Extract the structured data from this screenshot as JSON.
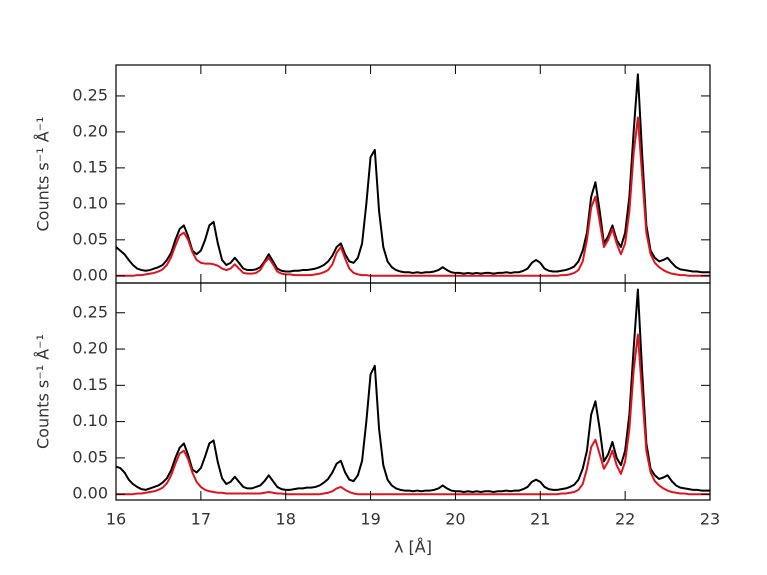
{
  "chart_data": [
    {
      "type": "line",
      "ylabel": "Counts s⁻¹ Å⁻¹",
      "xlim": [
        16,
        23
      ],
      "ylim": [
        -0.01,
        0.293
      ],
      "xticks": [
        16,
        17,
        18,
        19,
        20,
        21,
        22,
        23
      ],
      "yticks": [
        {
          "value": 0,
          "label": "0.00"
        },
        {
          "value": 0.05,
          "label": "0.05"
        },
        {
          "value": 0.1,
          "label": "0.10"
        },
        {
          "value": 0.15,
          "label": "0.15"
        },
        {
          "value": 0.2,
          "label": "0.20"
        },
        {
          "value": 0.25,
          "label": "0.25"
        }
      ],
      "x": [
        16,
        16.05,
        16.1,
        16.15,
        16.2,
        16.25,
        16.3,
        16.35,
        16.4,
        16.45,
        16.5,
        16.55,
        16.6,
        16.65,
        16.7,
        16.75,
        16.8,
        16.85,
        16.9,
        16.95,
        17,
        17.05,
        17.1,
        17.15,
        17.2,
        17.25,
        17.3,
        17.35,
        17.4,
        17.45,
        17.5,
        17.55,
        17.6,
        17.65,
        17.7,
        17.75,
        17.8,
        17.85,
        17.9,
        17.95,
        18,
        18.05,
        18.1,
        18.15,
        18.2,
        18.25,
        18.3,
        18.35,
        18.4,
        18.45,
        18.5,
        18.55,
        18.6,
        18.65,
        18.7,
        18.75,
        18.8,
        18.85,
        18.9,
        18.95,
        19,
        19.05,
        19.1,
        19.15,
        19.2,
        19.25,
        19.3,
        19.35,
        19.4,
        19.45,
        19.5,
        19.55,
        19.6,
        19.65,
        19.7,
        19.75,
        19.8,
        19.85,
        19.9,
        19.95,
        20,
        20.05,
        20.1,
        20.15,
        20.2,
        20.25,
        20.3,
        20.35,
        20.4,
        20.45,
        20.5,
        20.55,
        20.6,
        20.65,
        20.7,
        20.75,
        20.8,
        20.85,
        20.9,
        20.95,
        21,
        21.05,
        21.1,
        21.15,
        21.2,
        21.25,
        21.3,
        21.35,
        21.4,
        21.45,
        21.5,
        21.55,
        21.6,
        21.65,
        21.7,
        21.75,
        21.8,
        21.85,
        21.9,
        21.95,
        22,
        22.05,
        22.1,
        22.15,
        22.2,
        22.25,
        22.3,
        22.35,
        22.4,
        22.45,
        22.5,
        22.55,
        22.6,
        22.65,
        22.7,
        22.75,
        22.8,
        22.85,
        22.9,
        22.95,
        23
      ],
      "series": [
        {
          "color": "#000000",
          "values": [
            0.04,
            0.035,
            0.03,
            0.022,
            0.015,
            0.01,
            0.008,
            0.007,
            0.008,
            0.01,
            0.012,
            0.015,
            0.022,
            0.032,
            0.05,
            0.065,
            0.07,
            0.055,
            0.035,
            0.03,
            0.035,
            0.05,
            0.07,
            0.075,
            0.045,
            0.022,
            0.015,
            0.018,
            0.025,
            0.018,
            0.01,
            0.008,
            0.008,
            0.009,
            0.012,
            0.02,
            0.03,
            0.02,
            0.01,
            0.007,
            0.006,
            0.006,
            0.007,
            0.007,
            0.008,
            0.008,
            0.009,
            0.01,
            0.012,
            0.015,
            0.02,
            0.028,
            0.04,
            0.045,
            0.03,
            0.02,
            0.018,
            0.025,
            0.045,
            0.1,
            0.165,
            0.175,
            0.09,
            0.04,
            0.02,
            0.012,
            0.008,
            0.006,
            0.005,
            0.005,
            0.004,
            0.005,
            0.004,
            0.005,
            0.005,
            0.006,
            0.008,
            0.012,
            0.008,
            0.005,
            0.004,
            0.004,
            0.003,
            0.004,
            0.003,
            0.004,
            0.003,
            0.004,
            0.004,
            0.003,
            0.004,
            0.004,
            0.005,
            0.004,
            0.005,
            0.005,
            0.007,
            0.01,
            0.018,
            0.022,
            0.018,
            0.01,
            0.007,
            0.006,
            0.006,
            0.007,
            0.008,
            0.01,
            0.013,
            0.02,
            0.035,
            0.06,
            0.11,
            0.13,
            0.09,
            0.045,
            0.055,
            0.07,
            0.05,
            0.04,
            0.06,
            0.11,
            0.2,
            0.28,
            0.17,
            0.07,
            0.035,
            0.025,
            0.02,
            0.022,
            0.025,
            0.018,
            0.012,
            0.009,
            0.008,
            0.007,
            0.006,
            0.006,
            0.005,
            0.005,
            0.005
          ]
        },
        {
          "color": "#e0141e",
          "values": [
            0,
            0,
            0,
            0,
            0,
            0.001,
            0.001,
            0.002,
            0.003,
            0.004,
            0.006,
            0.009,
            0.015,
            0.026,
            0.042,
            0.056,
            0.06,
            0.05,
            0.033,
            0.022,
            0.018,
            0.017,
            0.017,
            0.016,
            0.014,
            0.01,
            0.008,
            0.01,
            0.016,
            0.01,
            0.004,
            0.003,
            0.003,
            0.004,
            0.008,
            0.018,
            0.025,
            0.016,
            0.006,
            0.003,
            0.002,
            0.002,
            0.001,
            0.001,
            0.001,
            0.001,
            0.001,
            0.002,
            0.003,
            0.005,
            0.008,
            0.016,
            0.032,
            0.04,
            0.024,
            0.01,
            0.004,
            0.002,
            0.001,
            0.001,
            0,
            0,
            0,
            0,
            0,
            0,
            0,
            0,
            0,
            0,
            0,
            0,
            0,
            0,
            0,
            0,
            0,
            0,
            0,
            0,
            0,
            0,
            0,
            0,
            0,
            0,
            0,
            0,
            0,
            0,
            0,
            0,
            0,
            0,
            0,
            0,
            0,
            0,
            0,
            0,
            0,
            0,
            0,
            0,
            0,
            0.001,
            0.001,
            0.002,
            0.004,
            0.008,
            0.02,
            0.05,
            0.095,
            0.11,
            0.075,
            0.04,
            0.05,
            0.065,
            0.045,
            0.03,
            0.045,
            0.09,
            0.17,
            0.22,
            0.14,
            0.06,
            0.03,
            0.018,
            0.012,
            0.008,
            0.005,
            0.003,
            0.002,
            0.001,
            0.001,
            0,
            0,
            0,
            0,
            0,
            0
          ]
        }
      ]
    },
    {
      "type": "line",
      "ylabel": "Counts s⁻¹ Å⁻¹",
      "xlabel": "λ [Å]",
      "xlim": [
        16,
        23
      ],
      "ylim": [
        -0.008,
        0.291
      ],
      "xticks": [
        16,
        17,
        18,
        19,
        20,
        21,
        22,
        23
      ],
      "yticks": [
        {
          "value": 0,
          "label": "0.00"
        },
        {
          "value": 0.05,
          "label": "0.05"
        },
        {
          "value": 0.1,
          "label": "0.10"
        },
        {
          "value": 0.15,
          "label": "0.15"
        },
        {
          "value": 0.2,
          "label": "0.20"
        },
        {
          "value": 0.25,
          "label": "0.25"
        }
      ],
      "x": [
        16,
        16.05,
        16.1,
        16.15,
        16.2,
        16.25,
        16.3,
        16.35,
        16.4,
        16.45,
        16.5,
        16.55,
        16.6,
        16.65,
        16.7,
        16.75,
        16.8,
        16.85,
        16.9,
        16.95,
        17,
        17.05,
        17.1,
        17.15,
        17.2,
        17.25,
        17.3,
        17.35,
        17.4,
        17.45,
        17.5,
        17.55,
        17.6,
        17.65,
        17.7,
        17.75,
        17.8,
        17.85,
        17.9,
        17.95,
        18,
        18.05,
        18.1,
        18.15,
        18.2,
        18.25,
        18.3,
        18.35,
        18.4,
        18.45,
        18.5,
        18.55,
        18.6,
        18.65,
        18.7,
        18.75,
        18.8,
        18.85,
        18.9,
        18.95,
        19,
        19.05,
        19.1,
        19.15,
        19.2,
        19.25,
        19.3,
        19.35,
        19.4,
        19.45,
        19.5,
        19.55,
        19.6,
        19.65,
        19.7,
        19.75,
        19.8,
        19.85,
        19.9,
        19.95,
        20,
        20.05,
        20.1,
        20.15,
        20.2,
        20.25,
        20.3,
        20.35,
        20.4,
        20.45,
        20.5,
        20.55,
        20.6,
        20.65,
        20.7,
        20.75,
        20.8,
        20.85,
        20.9,
        20.95,
        21,
        21.05,
        21.1,
        21.15,
        21.2,
        21.25,
        21.3,
        21.35,
        21.4,
        21.45,
        21.5,
        21.55,
        21.6,
        21.65,
        21.7,
        21.75,
        21.8,
        21.85,
        21.9,
        21.95,
        22,
        22.05,
        22.1,
        22.15,
        22.2,
        22.25,
        22.3,
        22.35,
        22.4,
        22.45,
        22.5,
        22.55,
        22.6,
        22.65,
        22.7,
        22.75,
        22.8,
        22.85,
        22.9,
        22.95,
        23
      ],
      "series": [
        {
          "color": "#000000",
          "values": [
            0.038,
            0.036,
            0.03,
            0.02,
            0.014,
            0.01,
            0.007,
            0.006,
            0.008,
            0.01,
            0.012,
            0.016,
            0.022,
            0.033,
            0.05,
            0.064,
            0.07,
            0.054,
            0.034,
            0.03,
            0.036,
            0.052,
            0.07,
            0.074,
            0.044,
            0.022,
            0.014,
            0.017,
            0.024,
            0.017,
            0.01,
            0.008,
            0.008,
            0.01,
            0.012,
            0.018,
            0.026,
            0.018,
            0.01,
            0.007,
            0.006,
            0.006,
            0.007,
            0.008,
            0.008,
            0.009,
            0.009,
            0.01,
            0.012,
            0.016,
            0.021,
            0.03,
            0.042,
            0.046,
            0.03,
            0.02,
            0.018,
            0.026,
            0.046,
            0.1,
            0.165,
            0.177,
            0.09,
            0.04,
            0.02,
            0.012,
            0.008,
            0.006,
            0.005,
            0.005,
            0.004,
            0.005,
            0.004,
            0.005,
            0.005,
            0.006,
            0.008,
            0.012,
            0.008,
            0.005,
            0.004,
            0.004,
            0.003,
            0.004,
            0.003,
            0.004,
            0.003,
            0.004,
            0.004,
            0.003,
            0.004,
            0.004,
            0.005,
            0.004,
            0.005,
            0.005,
            0.007,
            0.01,
            0.017,
            0.02,
            0.017,
            0.01,
            0.007,
            0.006,
            0.006,
            0.007,
            0.008,
            0.01,
            0.013,
            0.02,
            0.035,
            0.06,
            0.11,
            0.128,
            0.09,
            0.045,
            0.055,
            0.072,
            0.05,
            0.04,
            0.06,
            0.11,
            0.2,
            0.282,
            0.17,
            0.07,
            0.035,
            0.026,
            0.021,
            0.023,
            0.026,
            0.018,
            0.012,
            0.009,
            0.008,
            0.007,
            0.006,
            0.006,
            0.005,
            0.005,
            0.005
          ]
        },
        {
          "color": "#e0141e",
          "values": [
            0,
            0,
            0,
            0,
            0,
            0.001,
            0.001,
            0.002,
            0.003,
            0.004,
            0.006,
            0.009,
            0.015,
            0.026,
            0.042,
            0.056,
            0.06,
            0.048,
            0.03,
            0.017,
            0.01,
            0.006,
            0.004,
            0.003,
            0.002,
            0.002,
            0.001,
            0.001,
            0.001,
            0.001,
            0.001,
            0.001,
            0.001,
            0.001,
            0.001,
            0.002,
            0.003,
            0.002,
            0.001,
            0.001,
            0,
            0,
            0,
            0,
            0,
            0,
            0,
            0,
            0,
            0.001,
            0.002,
            0.004,
            0.008,
            0.01,
            0.006,
            0.003,
            0.001,
            0,
            0,
            0,
            0,
            0,
            0,
            0,
            0,
            0,
            0,
            0,
            0,
            0,
            0,
            0,
            0,
            0,
            0,
            0,
            0,
            0,
            0,
            0,
            0,
            0,
            0,
            0,
            0,
            0,
            0,
            0,
            0,
            0,
            0,
            0,
            0,
            0,
            0,
            0,
            0,
            0,
            0,
            0,
            0,
            0,
            0,
            0,
            0,
            0.001,
            0.001,
            0.002,
            0.003,
            0.006,
            0.014,
            0.035,
            0.065,
            0.075,
            0.055,
            0.035,
            0.045,
            0.06,
            0.04,
            0.028,
            0.045,
            0.09,
            0.17,
            0.22,
            0.14,
            0.06,
            0.03,
            0.018,
            0.012,
            0.008,
            0.005,
            0.003,
            0.002,
            0.001,
            0.001,
            0,
            0,
            0,
            0,
            0,
            0
          ]
        }
      ]
    }
  ]
}
